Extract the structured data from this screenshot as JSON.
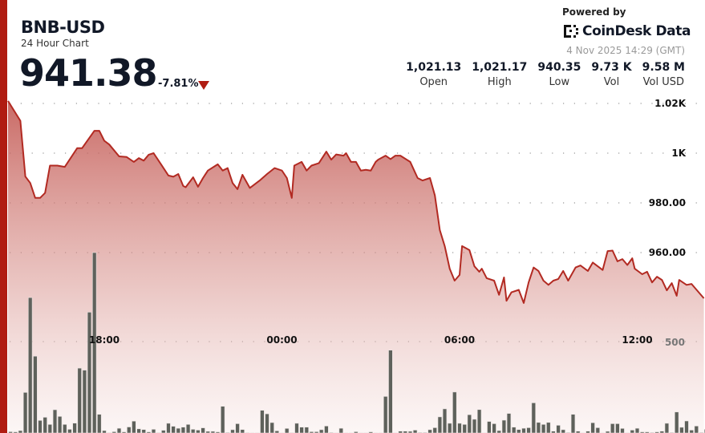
{
  "header": {
    "title": "BNB-USD",
    "subtitle": "24 Hour Chart",
    "price": "941.38",
    "change": "-7.81%",
    "change_direction": "down",
    "powered_by": "Powered by",
    "brand": "CoinDesk Data",
    "timestamp": "4 Nov 2025 14:29 (GMT)"
  },
  "stats": [
    {
      "value": "1,021.13",
      "label": "Open"
    },
    {
      "value": "1,021.17",
      "label": "High"
    },
    {
      "value": "940.35",
      "label": "Low"
    },
    {
      "value": "9.73 K",
      "label": "Vol"
    },
    {
      "value": "9.58 M",
      "label": "Vol USD"
    }
  ],
  "colors": {
    "accent": "#b01c12",
    "line": "#b22a22",
    "fill": "#c0504a",
    "volume": "#5e615b"
  },
  "chart_data": {
    "type": "area",
    "grid": true,
    "price_ylim": [
      887,
      1021
    ],
    "y_ticks": [
      {
        "value": 1020,
        "label": "1.02K"
      },
      {
        "value": 1000,
        "label": "1K"
      },
      {
        "value": 980,
        "label": "980.00"
      },
      {
        "value": 960,
        "label": "960.00"
      }
    ],
    "x_ticks": [
      "18:00",
      "00:00",
      "06:00",
      "12:00"
    ],
    "volume_ticks": [
      {
        "value": 500,
        "label": "500"
      }
    ],
    "price_series": [
      [
        "14:45",
        1021
      ],
      [
        "15:10",
        1013
      ],
      [
        "15:20",
        990.6
      ],
      [
        "15:30",
        988
      ],
      [
        "15:40",
        982
      ],
      [
        "15:50",
        982
      ],
      [
        "16:00",
        984
      ],
      [
        "16:10",
        995
      ],
      [
        "16:25",
        995
      ],
      [
        "16:40",
        994.5
      ],
      [
        "17:05",
        1002
      ],
      [
        "17:15",
        1002
      ],
      [
        "17:40",
        1009
      ],
      [
        "17:50",
        1009
      ],
      [
        "18:00",
        1005
      ],
      [
        "18:10",
        1003.5
      ],
      [
        "18:30",
        998.7
      ],
      [
        "18:45",
        998.5
      ],
      [
        "19:00",
        996.5
      ],
      [
        "19:10",
        998
      ],
      [
        "19:20",
        997
      ],
      [
        "19:30",
        999.4
      ],
      [
        "19:40",
        1000
      ],
      [
        "19:55",
        995.5
      ],
      [
        "20:10",
        991
      ],
      [
        "20:20",
        990.5
      ],
      [
        "20:30",
        991.6
      ],
      [
        "20:40",
        986.8
      ],
      [
        "20:45",
        986.3
      ],
      [
        "21:00",
        990.3
      ],
      [
        "21:10",
        986.5
      ],
      [
        "21:20",
        990
      ],
      [
        "21:30",
        993
      ],
      [
        "21:50",
        995.5
      ],
      [
        "22:00",
        993
      ],
      [
        "22:10",
        994
      ],
      [
        "22:20",
        988
      ],
      [
        "22:30",
        985.5
      ],
      [
        "22:40",
        991.3
      ],
      [
        "22:55",
        986
      ],
      [
        "23:15",
        989
      ],
      [
        "23:30",
        991.6
      ],
      [
        "23:45",
        994
      ],
      [
        "00:00",
        993
      ],
      [
        "00:10",
        990
      ],
      [
        "00:20",
        982
      ],
      [
        "00:25",
        995
      ],
      [
        "00:40",
        996.5
      ],
      [
        "00:50",
        993
      ],
      [
        "01:00",
        995
      ],
      [
        "01:15",
        996
      ],
      [
        "01:30",
        1000.6
      ],
      [
        "01:40",
        997.4
      ],
      [
        "01:50",
        999.5
      ],
      [
        "02:05",
        999
      ],
      [
        "02:10",
        1000
      ],
      [
        "02:20",
        996.5
      ],
      [
        "02:30",
        996.5
      ],
      [
        "02:40",
        993
      ],
      [
        "02:50",
        993.3
      ],
      [
        "03:00",
        993
      ],
      [
        "03:10",
        996.5
      ],
      [
        "03:15",
        997.4
      ],
      [
        "03:30",
        999
      ],
      [
        "03:40",
        997.6
      ],
      [
        "03:50",
        999
      ],
      [
        "04:00",
        999
      ],
      [
        "04:20",
        996.5
      ],
      [
        "04:35",
        990
      ],
      [
        "04:45",
        989
      ],
      [
        "05:00",
        990
      ],
      [
        "05:10",
        983
      ],
      [
        "05:20",
        969
      ],
      [
        "05:30",
        962.6
      ],
      [
        "05:40",
        953.5
      ],
      [
        "05:50",
        948.7
      ],
      [
        "06:00",
        951
      ],
      [
        "06:05",
        962.6
      ],
      [
        "06:20",
        961
      ],
      [
        "06:30",
        954.5
      ],
      [
        "06:40",
        952.3
      ],
      [
        "06:45",
        953.5
      ],
      [
        "06:55",
        949.7
      ],
      [
        "07:10",
        948.7
      ],
      [
        "07:20",
        943
      ],
      [
        "07:30",
        950
      ],
      [
        "07:35",
        940.6
      ],
      [
        "07:45",
        944
      ],
      [
        "08:00",
        945
      ],
      [
        "08:10",
        939.7
      ],
      [
        "08:20",
        948
      ],
      [
        "08:30",
        954
      ],
      [
        "08:40",
        952.6
      ],
      [
        "08:50",
        948.7
      ],
      [
        "09:00",
        947
      ],
      [
        "09:10",
        948.7
      ],
      [
        "09:20",
        949.4
      ],
      [
        "09:30",
        952.6
      ],
      [
        "09:40",
        948.7
      ],
      [
        "09:55",
        954
      ],
      [
        "10:05",
        954.8
      ],
      [
        "10:20",
        952.6
      ],
      [
        "10:30",
        956
      ],
      [
        "10:50",
        953
      ],
      [
        "11:00",
        960.6
      ],
      [
        "11:10",
        960.8
      ],
      [
        "11:20",
        956.5
      ],
      [
        "11:30",
        957.4
      ],
      [
        "11:40",
        955
      ],
      [
        "11:50",
        957.7
      ],
      [
        "11:55",
        953.5
      ],
      [
        "12:10",
        951.3
      ],
      [
        "12:20",
        952.3
      ],
      [
        "12:30",
        948
      ],
      [
        "12:40",
        950.3
      ],
      [
        "12:50",
        949
      ],
      [
        "13:00",
        944.8
      ],
      [
        "13:10",
        947.7
      ],
      [
        "13:20",
        942.6
      ],
      [
        "13:25",
        949
      ],
      [
        "13:40",
        947
      ],
      [
        "13:50",
        947.4
      ],
      [
        "14:15",
        941.6
      ]
    ],
    "volume_start": "14:50",
    "volume_values": [
      7,
      6,
      13,
      222,
      741,
      420,
      69,
      86,
      47,
      127,
      91,
      47,
      20,
      54,
      355,
      344,
      661,
      987,
      102,
      13,
      2,
      7,
      26,
      6,
      33,
      65,
      23,
      19,
      6,
      20,
      2,
      15,
      53,
      37,
      26,
      32,
      47,
      20,
      16,
      28,
      9,
      9,
      6,
      146,
      3,
      18,
      51,
      19,
      2,
      1,
      1,
      124,
      105,
      57,
      12,
      1,
      25,
      2,
      53,
      32,
      32,
      7,
      7,
      18,
      38,
      3,
      1,
      26,
      1,
      1,
      7,
      1,
      1,
      6,
      1,
      1,
      200,
      453,
      1,
      10,
      10,
      9,
      16,
      3,
      3,
      18,
      29,
      88,
      132,
      53,
      224,
      53,
      47,
      100,
      75,
      128,
      1,
      63,
      51,
      13,
      70,
      107,
      32,
      19,
      26,
      29,
      165,
      58,
      47,
      58,
      10,
      42,
      18,
      3,
      102,
      10,
      1,
      10,
      56,
      29,
      1,
      9,
      51,
      51,
      25,
      1,
      16,
      26,
      6,
      6,
      3,
      6,
      10,
      53,
      3,
      115,
      31,
      66,
      16,
      38,
      3,
      20
    ]
  }
}
